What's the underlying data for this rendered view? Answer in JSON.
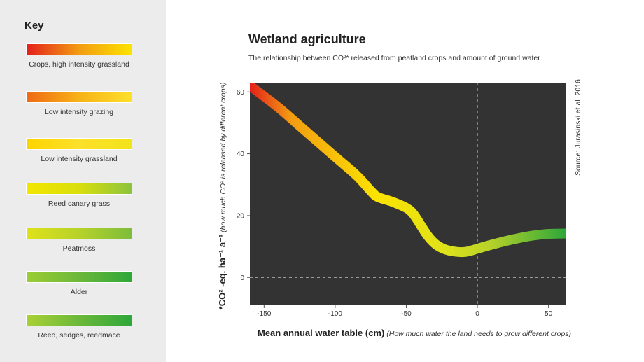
{
  "key": {
    "title": "Key",
    "items": [
      {
        "label": "Crops, high intensity grassland",
        "colors": [
          "#e3201b",
          "#f39c12",
          "#fce300"
        ]
      },
      {
        "label": "Low intensity grazing",
        "colors": [
          "#ef6a14",
          "#f7b217",
          "#fde02a"
        ]
      },
      {
        "label": "Low intensity grassland",
        "colors": [
          "#fcd400",
          "#fde02a",
          "#f2e31a"
        ]
      },
      {
        "label": "Reed canary grass",
        "colors": [
          "#f3e600",
          "#d9df0d",
          "#8cc33d"
        ]
      },
      {
        "label": "Peatmoss",
        "colors": [
          "#dfe21a",
          "#b7d22a",
          "#7dbd3c"
        ]
      },
      {
        "label": "Alder",
        "colors": [
          "#9ccd35",
          "#6cb83a",
          "#2ea73a"
        ]
      },
      {
        "label": "Reed, sedges, reedmace",
        "colors": [
          "#a9d036",
          "#6cb83a",
          "#2ea73a"
        ]
      }
    ]
  },
  "header": {
    "title": "Wetland agriculture",
    "subtitle": "The relationship between CO²* released from peatland crops and amount of ground water"
  },
  "source": "Source: Jurasinski et al. 2016",
  "chart_data": {
    "type": "line",
    "title": "Wetland agriculture",
    "xlabel": "Mean annual water table (cm)",
    "xlabel_note": "(How much water the land needs to grow different crops)",
    "ylabel": "*CO² -eq. ha⁻¹ a⁻¹",
    "ylabel_note": "(how much CO² is released by different crops)",
    "xlim": [
      -160,
      62
    ],
    "ylim": [
      -9,
      63
    ],
    "x_ticks": [
      -150,
      -100,
      -50,
      0,
      50
    ],
    "y_ticks": [
      0,
      20,
      40,
      60
    ],
    "reference_lines": {
      "x": 0,
      "y": 0,
      "style": "dashed"
    },
    "background": "#333333",
    "series": [
      {
        "x": [
          -160,
          -140,
          -120,
          -100,
          -85,
          -75,
          -70,
          -60,
          -50,
          -45,
          -40,
          -35,
          -30,
          -25,
          -20,
          -15,
          -10,
          -5,
          0,
          10,
          20,
          30,
          40,
          50,
          62
        ],
        "y": [
          62,
          55,
          47,
          39,
          33,
          28,
          26,
          24.5,
          22.5,
          20.5,
          17,
          13.5,
          11,
          9.5,
          8.7,
          8.3,
          8.2,
          8.6,
          9.3,
          10.6,
          11.8,
          12.8,
          13.6,
          14.1,
          14.2
        ],
        "gradient_colors": [
          "#e3201b",
          "#f39c12",
          "#fce300",
          "#dfe21a",
          "#b7d22a",
          "#2ea73a"
        ]
      }
    ]
  }
}
